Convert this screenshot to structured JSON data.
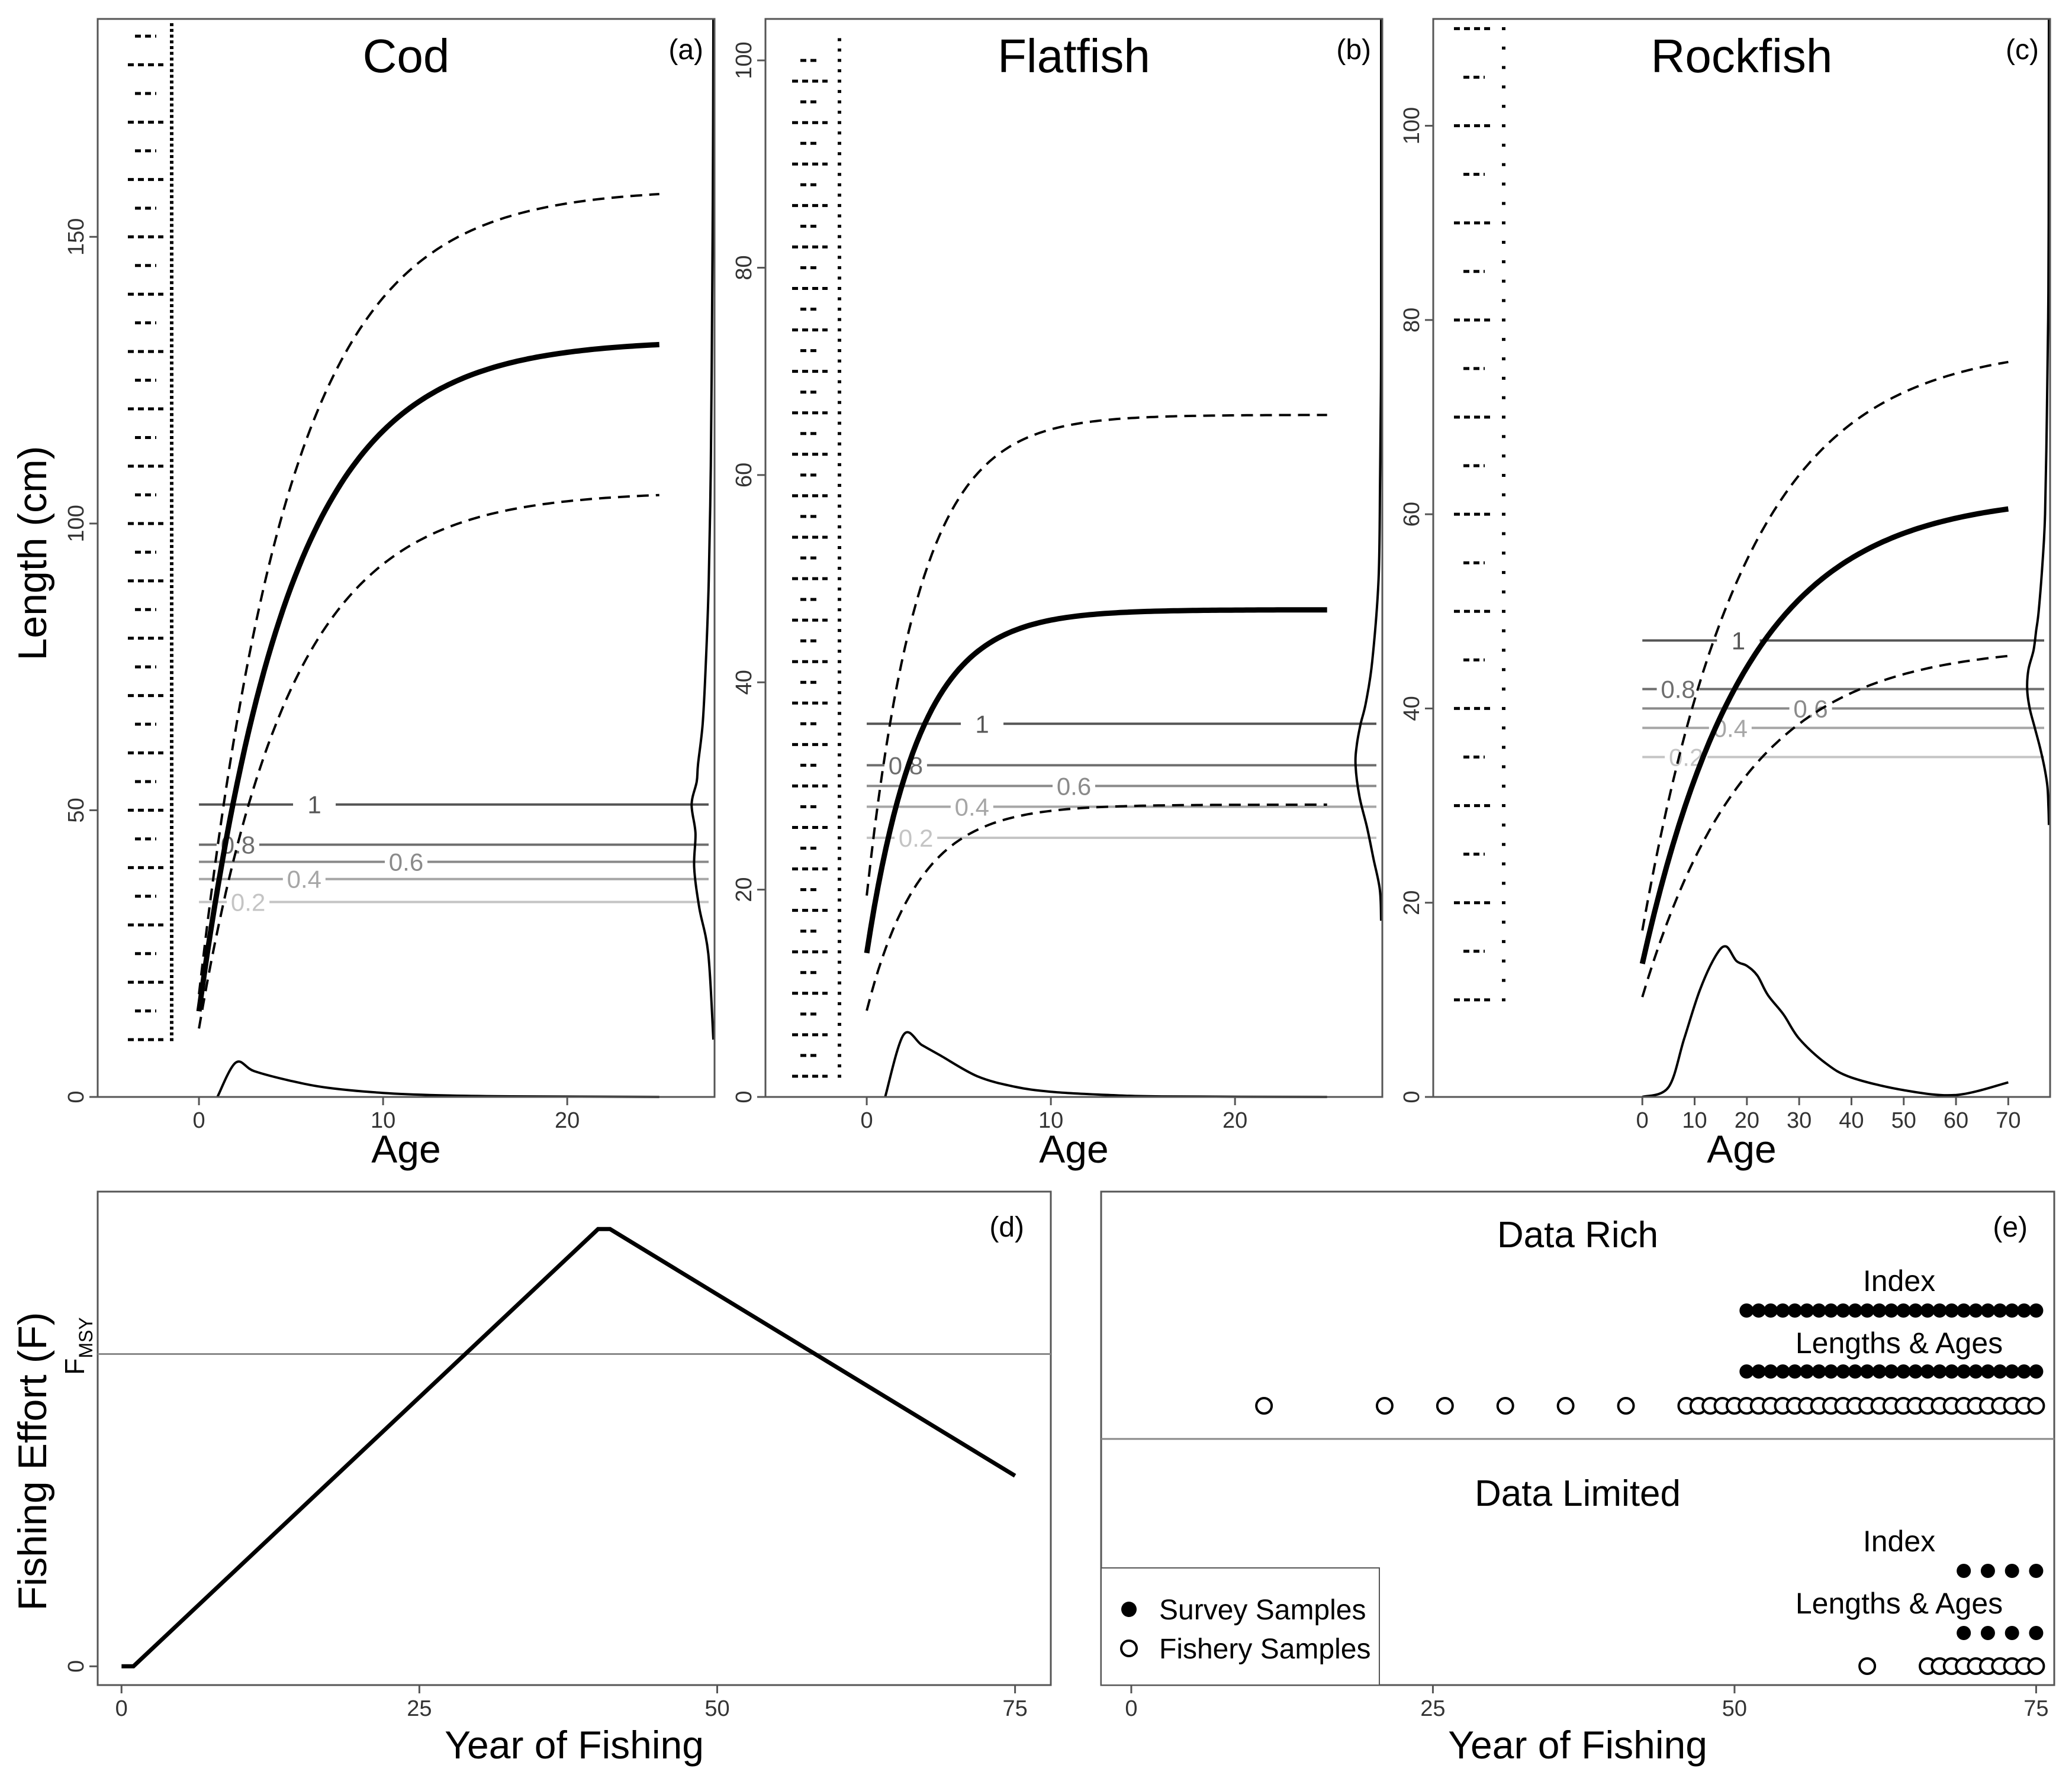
{
  "figure": {
    "y_label_top": "Length (cm)",
    "y_label_bottom": "Fishing Effort (F)"
  },
  "chart_data": [
    {
      "panel": "(a)",
      "title": "Cod",
      "type": "line",
      "xlabel": "Age",
      "ylabel": "Length (cm)",
      "x_ticks": [
        0,
        10,
        20
      ],
      "y_ticks": [
        0,
        50,
        100,
        150
      ],
      "xlim": [
        -5.5,
        28
      ],
      "ylim": [
        0,
        188
      ],
      "growth": {
        "linf": 132,
        "k": 0.2,
        "t0": -0.6,
        "amax": 25
      },
      "upper_curve_scale": 1.2,
      "lower_curve_scale": 0.8,
      "selectivity": [
        {
          "label": "1",
          "y": 51
        },
        {
          "label": "0.8",
          "y": 44
        },
        {
          "label": "0.6",
          "y": 41
        },
        {
          "label": "0.4",
          "y": 38
        },
        {
          "label": "0.2",
          "y": 34
        }
      ],
      "age_distribution": {
        "x": [
          1,
          2,
          3,
          5,
          7,
          10,
          13,
          17,
          25
        ],
        "y": [
          0,
          6,
          4.5,
          2.8,
          1.6,
          0.7,
          0.3,
          0.1,
          0
        ]
      },
      "length_distribution": {
        "y": [
          10,
          25,
          33,
          40,
          46,
          51,
          55,
          58,
          65,
          75,
          90,
          110,
          130,
          150,
          170,
          188
        ],
        "d": [
          0,
          0.2,
          0.55,
          0.75,
          0.7,
          0.85,
          0.65,
          0.6,
          0.42,
          0.3,
          0.18,
          0.1,
          0.06,
          0.03,
          0.01,
          0
        ]
      },
      "fishery_bins": [
        10,
        15,
        20,
        25,
        30,
        35,
        40,
        45,
        50,
        55,
        60,
        65,
        70,
        75,
        80,
        85,
        90,
        95,
        100,
        105,
        110,
        115,
        120,
        125,
        130,
        135,
        140,
        145,
        150,
        155,
        160,
        165,
        170,
        175,
        180,
        185
      ],
      "survey_bins": [
        10,
        11,
        12,
        13,
        14,
        15,
        16,
        17,
        18,
        19,
        20,
        21,
        22,
        23,
        24,
        25,
        26,
        27,
        28,
        29,
        30,
        31,
        32,
        33,
        34,
        35,
        36,
        37,
        38,
        39,
        40,
        41,
        42,
        43,
        44,
        45,
        46,
        47,
        48,
        49,
        50,
        51,
        52,
        53,
        54,
        55,
        56,
        57,
        58,
        59,
        60,
        61,
        62,
        63,
        64,
        65,
        66,
        67,
        68,
        69,
        70,
        71,
        72,
        73,
        74,
        75,
        76,
        77,
        78,
        79,
        80,
        81,
        82,
        83,
        84,
        85,
        86,
        87,
        88,
        89,
        90,
        91,
        92,
        93,
        94,
        95,
        96,
        97,
        98,
        99,
        100,
        101,
        102,
        103,
        104,
        105,
        106,
        107,
        108,
        109,
        110,
        111,
        112,
        113,
        114,
        115,
        116,
        117,
        118,
        119,
        120,
        121,
        122,
        123,
        124,
        125,
        126,
        127,
        128,
        129,
        130,
        131,
        132,
        133,
        134,
        135,
        136,
        137,
        138,
        139,
        140,
        141,
        142,
        143,
        144,
        145,
        146,
        147,
        148,
        149,
        150,
        151,
        152,
        153,
        154,
        155,
        156,
        157,
        158,
        159,
        160,
        161,
        162,
        163,
        164,
        165,
        166,
        167,
        168,
        169,
        170,
        171,
        172,
        173,
        174,
        175,
        176,
        177,
        178,
        179,
        180,
        181,
        182,
        183,
        184,
        185,
        186,
        187
      ]
    },
    {
      "panel": "(b)",
      "title": "Flatfish",
      "type": "line",
      "xlabel": "Age",
      "ylabel": "",
      "x_ticks": [
        0,
        10,
        20
      ],
      "y_ticks": [
        0,
        20,
        40,
        60,
        80,
        100
      ],
      "xlim": [
        -5.5,
        28
      ],
      "ylim": [
        0,
        104
      ],
      "growth": {
        "linf": 47,
        "k": 0.35,
        "t0": -1.0,
        "amax": 25
      },
      "upper_curve_scale": 1.4,
      "lower_curve_scale": 0.6,
      "selectivity": [
        {
          "label": "1",
          "y": 36
        },
        {
          "label": "0.8",
          "y": 32
        },
        {
          "label": "0.6",
          "y": 30
        },
        {
          "label": "0.4",
          "y": 28
        },
        {
          "label": "0.2",
          "y": 25
        }
      ],
      "age_distribution": {
        "x": [
          1,
          2,
          3,
          4,
          6,
          8,
          10,
          13,
          16,
          25
        ],
        "y": [
          0,
          6,
          5,
          4,
          2,
          1,
          0.5,
          0.2,
          0.05,
          0
        ]
      },
      "length_distribution": {
        "y": [
          17,
          20,
          23,
          26,
          29,
          32,
          34,
          36,
          38,
          42,
          50,
          60,
          68,
          75,
          90,
          104
        ],
        "d": [
          0,
          0.05,
          0.3,
          0.55,
          0.85,
          1.0,
          0.95,
          0.8,
          0.6,
          0.35,
          0.1,
          0.04,
          0.01,
          0,
          0,
          0
        ]
      },
      "fishery_bins": [
        2,
        4,
        6,
        8,
        10,
        12,
        14,
        16,
        18,
        20,
        22,
        24,
        26,
        28,
        30,
        32,
        34,
        36,
        38,
        40,
        42,
        44,
        46,
        48,
        50,
        52,
        54,
        56,
        58,
        60,
        62,
        64,
        66,
        68,
        70,
        72,
        74,
        76,
        78,
        80,
        82,
        84,
        86,
        88,
        90,
        92,
        94,
        96,
        98,
        100
      ],
      "survey_bins": [
        2,
        3,
        4,
        5,
        6,
        7,
        8,
        9,
        10,
        11,
        12,
        13,
        14,
        15,
        16,
        17,
        18,
        19,
        20,
        21,
        22,
        23,
        24,
        25,
        26,
        27,
        28,
        29,
        30,
        31,
        32,
        33,
        34,
        35,
        36,
        37,
        38,
        39,
        40,
        41,
        42,
        43,
        44,
        45,
        46,
        47,
        48,
        49,
        50,
        51,
        52,
        53,
        54,
        55,
        56,
        57,
        58,
        59,
        60,
        61,
        62,
        63,
        64,
        65,
        66,
        67,
        68,
        69,
        70,
        71,
        72,
        73,
        74,
        75,
        76,
        77,
        78,
        79,
        80,
        81,
        82,
        83,
        84,
        85,
        86,
        87,
        88,
        89,
        90,
        91,
        92,
        93,
        94,
        95,
        96,
        97,
        98,
        99,
        100,
        101,
        102
      ]
    },
    {
      "panel": "(c)",
      "title": "Rockfish",
      "type": "line",
      "xlabel": "Age",
      "ylabel": "",
      "x_ticks": [
        0,
        10,
        20,
        30,
        40,
        50,
        60,
        70
      ],
      "y_ticks": [
        20,
        40,
        60,
        80,
        100
      ],
      "y_zero_label": "0",
      "xlim": [
        -40,
        78
      ],
      "ylim": [
        0,
        111
      ],
      "growth": {
        "linf": 62,
        "k": 0.05,
        "t0": -5,
        "amax": 70
      },
      "upper_curve_scale": 1.25,
      "lower_curve_scale": 0.75,
      "selectivity": [
        {
          "label": "1",
          "y": 47
        },
        {
          "label": "0.8",
          "y": 42
        },
        {
          "label": "0.6",
          "y": 40
        },
        {
          "label": "0.4",
          "y": 38
        },
        {
          "label": "0.2",
          "y": 35
        }
      ],
      "age_distribution": {
        "x": [
          0,
          5,
          8,
          11,
          14,
          16,
          18,
          20,
          22,
          24,
          27,
          30,
          35,
          40,
          50,
          60,
          70
        ],
        "y": [
          0,
          1,
          6,
          11,
          14.5,
          15.5,
          14,
          13.5,
          12.5,
          10.5,
          8.5,
          6,
          3.5,
          2,
          0.7,
          0.2,
          1.5
        ]
      },
      "length_distribution": {
        "y": [
          28,
          30,
          32,
          34,
          36,
          38,
          40,
          42,
          44,
          46,
          48,
          50,
          55,
          60,
          70,
          80,
          90,
          111
        ],
        "d": [
          0,
          0.02,
          0.06,
          0.18,
          0.35,
          0.55,
          0.75,
          0.85,
          0.8,
          0.6,
          0.5,
          0.4,
          0.25,
          0.15,
          0.08,
          0.03,
          0.01,
          0
        ]
      },
      "fishery_bins": [
        10,
        15,
        20,
        25,
        30,
        35,
        40,
        45,
        50,
        55,
        60,
        65,
        70,
        75,
        80,
        85,
        90,
        95,
        100,
        105,
        110
      ],
      "survey_bins": [
        10,
        12,
        14,
        16,
        18,
        20,
        22,
        24,
        26,
        28,
        30,
        32,
        34,
        36,
        38,
        40,
        42,
        44,
        46,
        48,
        50,
        52,
        54,
        56,
        58,
        60,
        62,
        64,
        66,
        68,
        70,
        72,
        74,
        76,
        78,
        80,
        82,
        84,
        86,
        88,
        90,
        92,
        94,
        96,
        98,
        100,
        102,
        104,
        106,
        108,
        110
      ]
    },
    {
      "panel": "(d)",
      "type": "line",
      "xlabel": "Year of Fishing",
      "ylabel": "Fishing Effort (F)",
      "x_ticks": [
        0,
        25,
        50,
        75
      ],
      "xlim": [
        -2,
        78
      ],
      "ylim": [
        -0.06,
        1.52
      ],
      "y_zero_label": "0",
      "reference_line": {
        "label": "F",
        "subscript": "MSY",
        "y": 1.0
      },
      "series": [
        {
          "x": [
            0,
            1,
            40,
            41,
            75
          ],
          "y": [
            0,
            0,
            1.4,
            1.4,
            0.61
          ]
        }
      ]
    },
    {
      "panel": "(e)",
      "type": "scatter",
      "xlabel": "Year of Fishing",
      "x_ticks": [
        0,
        25,
        50,
        75
      ],
      "xlim": [
        -2.5,
        76.5
      ],
      "groups": [
        {
          "title": "Data Rich",
          "index_label": "Index",
          "lengths_label": "Lengths & Ages",
          "index_years": [
            51,
            52,
            53,
            54,
            55,
            56,
            57,
            58,
            59,
            60,
            61,
            62,
            63,
            64,
            65,
            66,
            67,
            68,
            69,
            70,
            71,
            72,
            73,
            74,
            75
          ],
          "survey_length_years": [
            51,
            52,
            53,
            54,
            55,
            56,
            57,
            58,
            59,
            60,
            61,
            62,
            63,
            64,
            65,
            66,
            67,
            68,
            69,
            70,
            71,
            72,
            73,
            74,
            75
          ],
          "fishery_years": [
            11,
            21,
            26,
            31,
            36,
            41,
            46,
            47,
            48,
            49,
            50,
            51,
            52,
            53,
            54,
            55,
            56,
            57,
            58,
            59,
            60,
            61,
            62,
            63,
            64,
            65,
            66,
            67,
            68,
            69,
            70,
            71,
            72,
            73,
            74,
            75
          ]
        },
        {
          "title": "Data Limited",
          "index_label": "Index",
          "lengths_label": "Lengths & Ages",
          "index_years": [
            69,
            71,
            73,
            75
          ],
          "survey_length_years": [
            69,
            71,
            73,
            75
          ],
          "fishery_years": [
            61,
            66,
            67,
            68,
            69,
            70,
            71,
            72,
            73,
            74,
            75
          ]
        }
      ],
      "legend": {
        "position": "bottom-left",
        "entries": [
          {
            "marker": "filled-circle",
            "label": "Survey Samples"
          },
          {
            "marker": "open-circle",
            "label": "Fishery Samples"
          }
        ]
      }
    }
  ]
}
